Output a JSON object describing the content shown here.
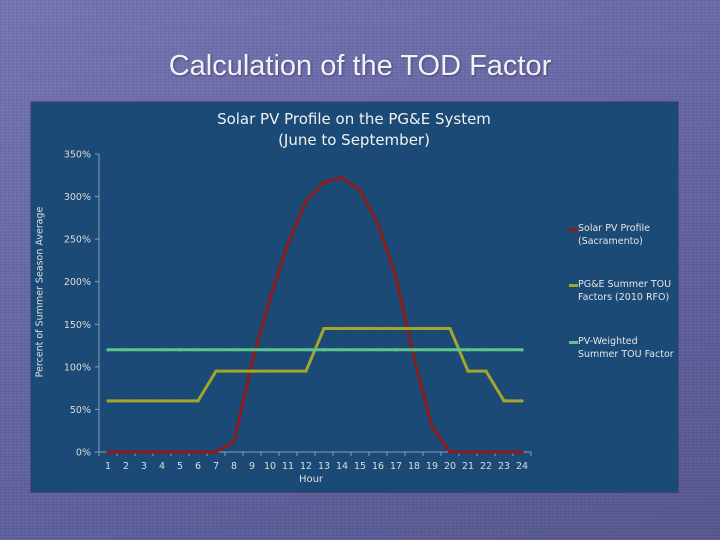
{
  "slide": {
    "title": "Calculation of the TOD Factor"
  },
  "chart_data": {
    "type": "line",
    "title": "Solar PV Profile on the PG&E System",
    "subtitle": "(June to September)",
    "xlabel": "Hour",
    "ylabel": "Percent of Summer Season Average",
    "x": [
      1,
      2,
      3,
      4,
      5,
      6,
      7,
      8,
      9,
      10,
      11,
      12,
      13,
      14,
      15,
      16,
      17,
      18,
      19,
      20,
      21,
      22,
      23,
      24
    ],
    "ylim": [
      0,
      350
    ],
    "y_ticks": [
      "0%",
      "50%",
      "100%",
      "150%",
      "200%",
      "250%",
      "300%",
      "350%"
    ],
    "y_tick_values": [
      0,
      50,
      100,
      150,
      200,
      250,
      300,
      350
    ],
    "grid": false,
    "legend_position": "right",
    "series": [
      {
        "name": "Solar PV Profile (Sacramento)",
        "color": "#8b1c1c",
        "values": [
          0,
          0,
          0,
          0,
          0,
          0,
          0,
          12,
          105,
          180,
          245,
          295,
          317,
          322,
          307,
          268,
          205,
          110,
          30,
          0,
          0,
          0,
          0,
          0
        ]
      },
      {
        "name": "PG&E Summer TOU Factors (2010 RFO)",
        "color": "#a5a52a",
        "values": [
          60,
          60,
          60,
          60,
          60,
          60,
          95,
          95,
          95,
          95,
          95,
          95,
          145,
          145,
          145,
          145,
          145,
          145,
          145,
          145,
          95,
          95,
          60,
          60
        ]
      },
      {
        "name": "PV-Weighted Summer TOU Factor",
        "color": "#5cc48c",
        "values": [
          120,
          120,
          120,
          120,
          120,
          120,
          120,
          120,
          120,
          120,
          120,
          120,
          120,
          120,
          120,
          120,
          120,
          120,
          120,
          120,
          120,
          120,
          120,
          120
        ]
      }
    ]
  }
}
